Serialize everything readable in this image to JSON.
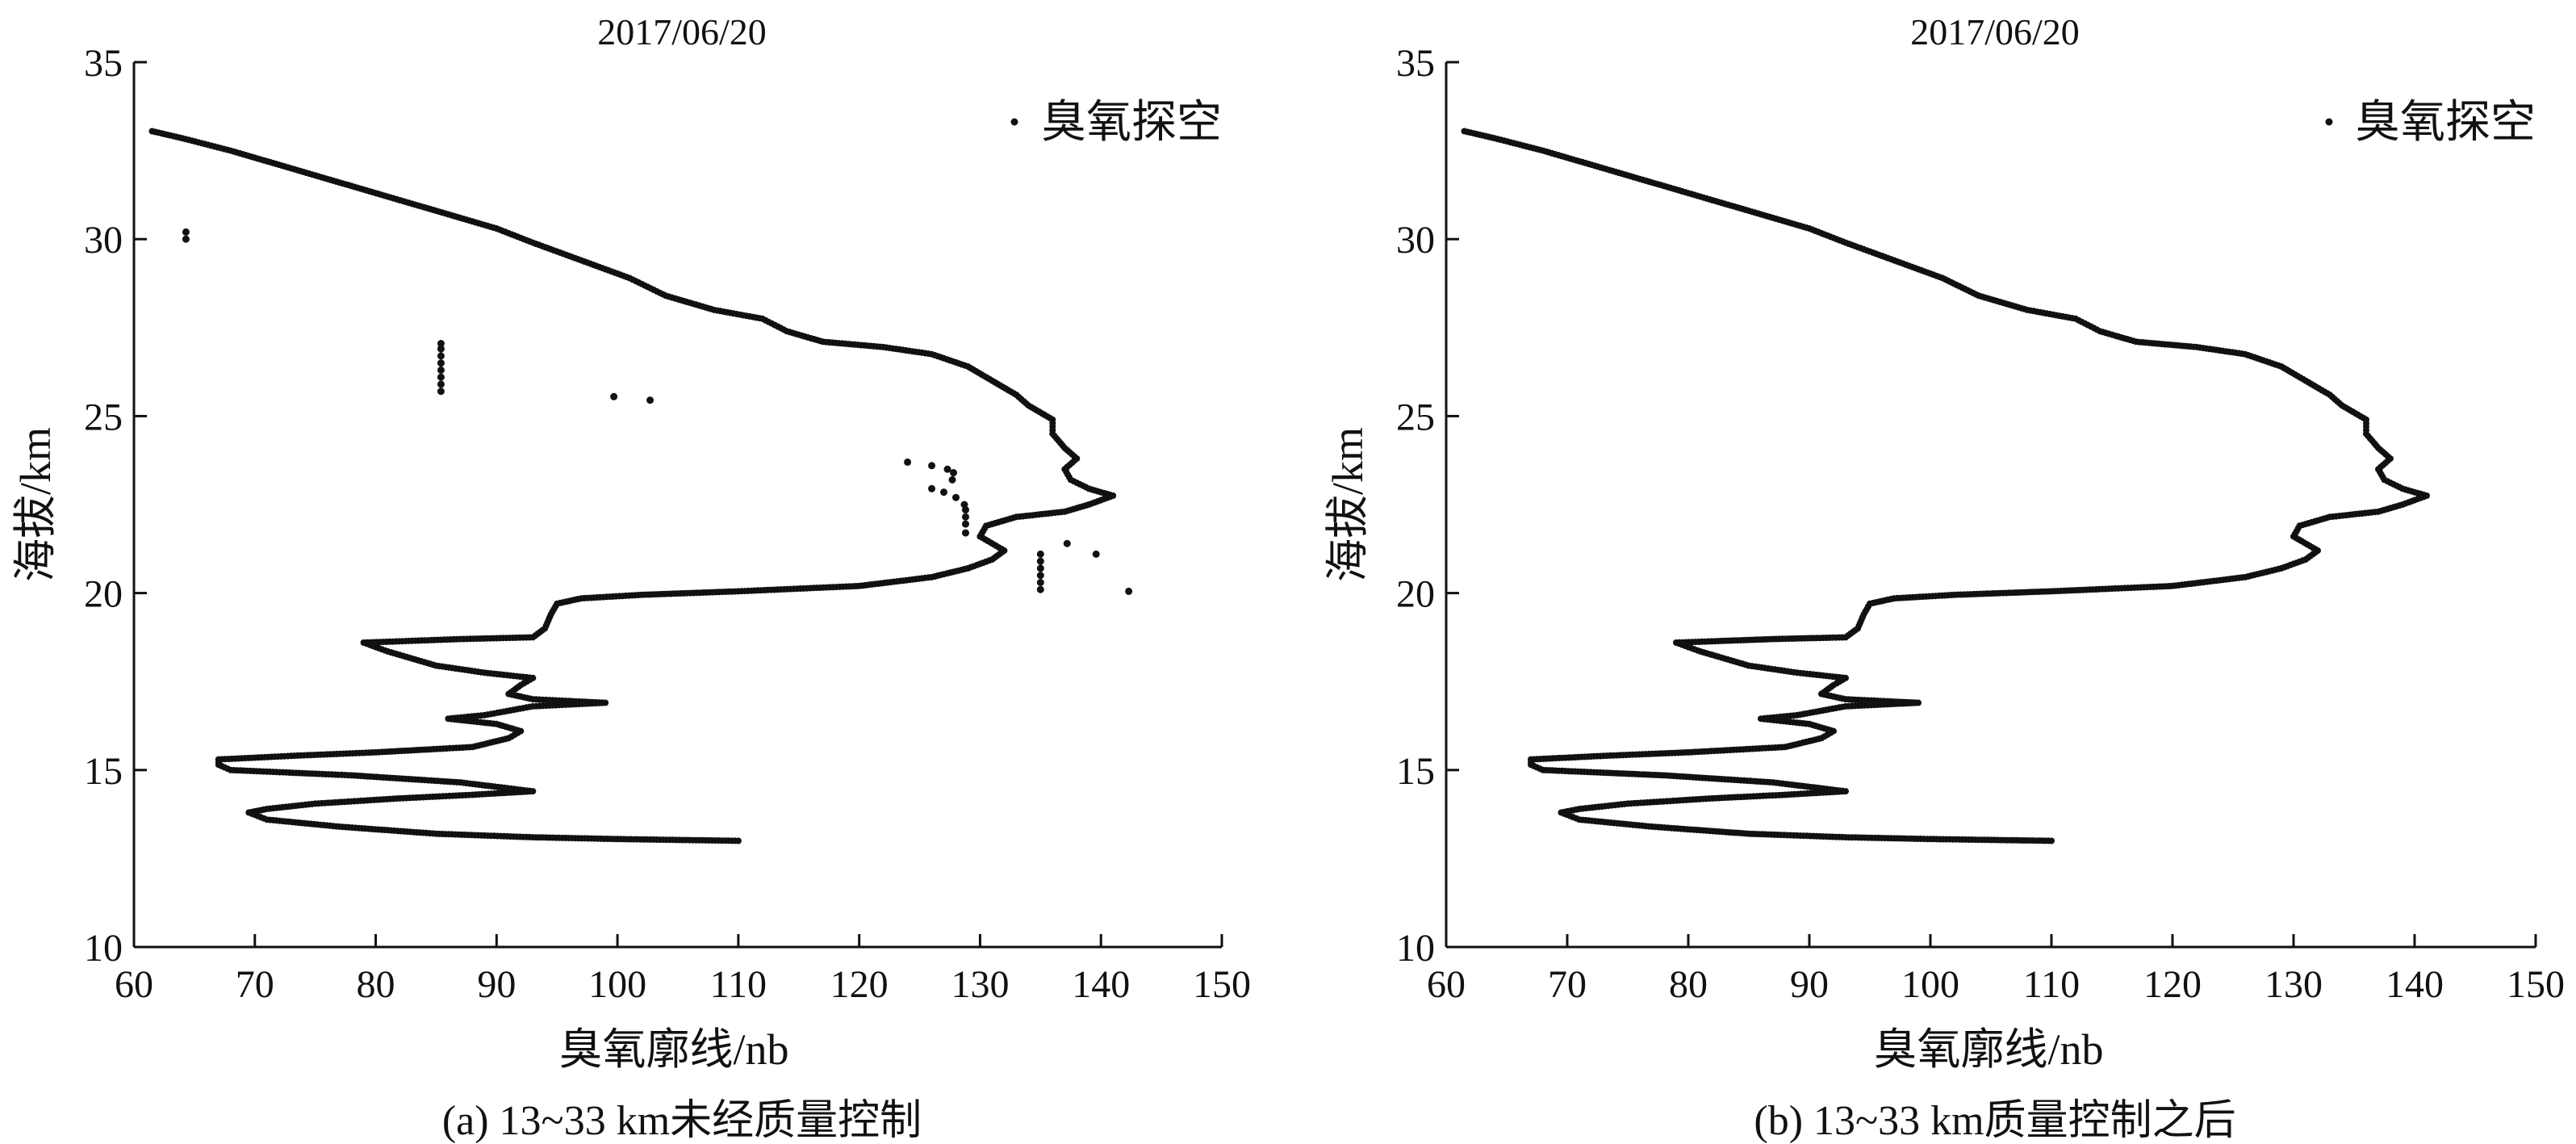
{
  "chart_data": [
    {
      "type": "scatter",
      "title": "2017/06/20",
      "xlabel": "臭氧廓线/nb",
      "ylabel": "海拔/km",
      "caption": "(a) 13~33 km未经质量控制",
      "xlim": [
        60,
        150
      ],
      "ylim": [
        10,
        35
      ],
      "xticks": [
        "60",
        "70",
        "80",
        "90",
        "100",
        "110",
        "120",
        "130",
        "140",
        "150"
      ],
      "yticks": [
        "10",
        "15",
        "20",
        "25",
        "30",
        "35"
      ],
      "legend": {
        "label": "臭氧探空",
        "placement": "top-right"
      },
      "grid": false,
      "series": [
        {
          "name": "臭氧探空",
          "profile": [
            [
              110,
              13.0
            ],
            [
              100,
              13.05
            ],
            [
              93,
              13.1
            ],
            [
              85,
              13.2
            ],
            [
              77,
              13.4
            ],
            [
              71,
              13.6
            ],
            [
              69.5,
              13.8
            ],
            [
              71,
              13.9
            ],
            [
              75,
              14.05
            ],
            [
              82,
              14.2
            ],
            [
              88,
              14.3
            ],
            [
              93,
              14.4
            ],
            [
              87,
              14.65
            ],
            [
              78,
              14.85
            ],
            [
              68,
              15.0
            ],
            [
              67,
              15.15
            ],
            [
              67,
              15.3
            ],
            [
              73,
              15.4
            ],
            [
              80,
              15.5
            ],
            [
              88,
              15.65
            ],
            [
              91,
              15.9
            ],
            [
              92,
              16.1
            ],
            [
              90,
              16.3
            ],
            [
              86,
              16.45
            ],
            [
              89,
              16.55
            ],
            [
              93,
              16.8
            ],
            [
              99,
              16.9
            ],
            [
              93,
              17.0
            ],
            [
              91,
              17.15
            ],
            [
              92,
              17.4
            ],
            [
              93,
              17.6
            ],
            [
              89,
              17.75
            ],
            [
              85,
              17.95
            ],
            [
              83,
              18.15
            ],
            [
              81,
              18.35
            ],
            [
              79,
              18.6
            ],
            [
              87,
              18.7
            ],
            [
              93,
              18.75
            ],
            [
              94,
              19.0
            ],
            [
              94.5,
              19.4
            ],
            [
              95,
              19.7
            ],
            [
              97,
              19.85
            ],
            [
              102,
              19.95
            ],
            [
              110,
              20.05
            ],
            [
              120,
              20.2
            ],
            [
              126,
              20.45
            ],
            [
              129,
              20.7
            ],
            [
              131,
              20.95
            ],
            [
              132,
              21.2
            ],
            [
              130,
              21.6
            ],
            [
              130.5,
              21.9
            ],
            [
              133,
              22.15
            ],
            [
              137,
              22.3
            ],
            [
              139,
              22.5
            ],
            [
              141,
              22.75
            ],
            [
              139,
              22.95
            ],
            [
              137.5,
              23.2
            ],
            [
              137,
              23.5
            ],
            [
              138,
              23.8
            ],
            [
              137,
              24.1
            ],
            [
              136,
              24.5
            ],
            [
              136,
              24.9
            ],
            [
              134,
              25.3
            ],
            [
              133,
              25.6
            ],
            [
              131,
              26.0
            ],
            [
              129,
              26.4
            ],
            [
              126,
              26.75
            ],
            [
              122,
              26.95
            ],
            [
              117,
              27.1
            ],
            [
              114,
              27.4
            ],
            [
              112,
              27.75
            ],
            [
              108,
              28.0
            ],
            [
              104,
              28.4
            ],
            [
              101,
              28.9
            ],
            [
              97,
              29.4
            ],
            [
              93,
              29.9
            ],
            [
              90,
              30.3
            ],
            [
              87,
              30.6
            ],
            [
              84,
              30.9
            ],
            [
              80,
              31.3
            ],
            [
              76,
              31.7
            ],
            [
              72,
              32.1
            ],
            [
              68,
              32.5
            ],
            [
              64,
              32.85
            ],
            [
              61.5,
              33.05
            ]
          ],
          "outliers": [
            [
              64.3,
              30.0
            ],
            [
              64.3,
              30.2
            ],
            [
              85.4,
              25.7
            ],
            [
              85.4,
              25.9
            ],
            [
              85.4,
              26.1
            ],
            [
              85.4,
              26.3
            ],
            [
              85.4,
              26.5
            ],
            [
              85.4,
              26.7
            ],
            [
              85.4,
              26.9
            ],
            [
              85.4,
              27.05
            ],
            [
              99.7,
              25.55
            ],
            [
              102.7,
              25.45
            ],
            [
              124,
              23.7
            ],
            [
              126,
              23.6
            ],
            [
              127.3,
              23.5
            ],
            [
              126,
              22.95
            ],
            [
              127,
              22.85
            ],
            [
              128,
              22.7
            ],
            [
              128.7,
              22.5
            ],
            [
              127.7,
              23.2
            ],
            [
              127.8,
              23.4
            ],
            [
              128.8,
              21.7
            ],
            [
              128.8,
              21.95
            ],
            [
              128.8,
              22.15
            ],
            [
              128.8,
              22.35
            ],
            [
              137.2,
              21.4
            ],
            [
              139.6,
              21.1
            ],
            [
              135,
              20.1
            ],
            [
              135,
              20.3
            ],
            [
              135,
              20.5
            ],
            [
              135,
              20.7
            ],
            [
              135,
              20.9
            ],
            [
              135,
              21.1
            ],
            [
              142.3,
              20.05
            ]
          ]
        }
      ]
    },
    {
      "type": "scatter",
      "title": "2017/06/20",
      "xlabel": "臭氧廓线/nb",
      "ylabel": "海拔/km",
      "caption": "(b) 13~33 km质量控制之后",
      "xlim": [
        60,
        150
      ],
      "ylim": [
        10,
        35
      ],
      "xticks": [
        "60",
        "70",
        "80",
        "90",
        "100",
        "110",
        "120",
        "130",
        "140",
        "150"
      ],
      "yticks": [
        "10",
        "15",
        "20",
        "25",
        "30",
        "35"
      ],
      "legend": {
        "label": "臭氧探空",
        "placement": "top-right"
      },
      "grid": false,
      "series": [
        {
          "name": "臭氧探空",
          "profile": [
            [
              110,
              13.0
            ],
            [
              100,
              13.05
            ],
            [
              93,
              13.1
            ],
            [
              85,
              13.2
            ],
            [
              77,
              13.4
            ],
            [
              71,
              13.6
            ],
            [
              69.5,
              13.8
            ],
            [
              71,
              13.9
            ],
            [
              75,
              14.05
            ],
            [
              82,
              14.2
            ],
            [
              88,
              14.3
            ],
            [
              93,
              14.4
            ],
            [
              87,
              14.65
            ],
            [
              78,
              14.85
            ],
            [
              68,
              15.0
            ],
            [
              67,
              15.15
            ],
            [
              67,
              15.3
            ],
            [
              73,
              15.4
            ],
            [
              80,
              15.5
            ],
            [
              88,
              15.65
            ],
            [
              91,
              15.9
            ],
            [
              92,
              16.1
            ],
            [
              90,
              16.3
            ],
            [
              86,
              16.45
            ],
            [
              89,
              16.55
            ],
            [
              93,
              16.8
            ],
            [
              99,
              16.9
            ],
            [
              93,
              17.0
            ],
            [
              91,
              17.15
            ],
            [
              92,
              17.4
            ],
            [
              93,
              17.6
            ],
            [
              89,
              17.75
            ],
            [
              85,
              17.95
            ],
            [
              83,
              18.15
            ],
            [
              81,
              18.35
            ],
            [
              79,
              18.6
            ],
            [
              87,
              18.7
            ],
            [
              93,
              18.75
            ],
            [
              94,
              19.0
            ],
            [
              94.5,
              19.4
            ],
            [
              95,
              19.7
            ],
            [
              97,
              19.85
            ],
            [
              102,
              19.95
            ],
            [
              110,
              20.05
            ],
            [
              120,
              20.2
            ],
            [
              126,
              20.45
            ],
            [
              129,
              20.7
            ],
            [
              131,
              20.95
            ],
            [
              132,
              21.2
            ],
            [
              130,
              21.6
            ],
            [
              130.5,
              21.9
            ],
            [
              133,
              22.15
            ],
            [
              137,
              22.3
            ],
            [
              139,
              22.5
            ],
            [
              141,
              22.75
            ],
            [
              139,
              22.95
            ],
            [
              137.5,
              23.2
            ],
            [
              137,
              23.5
            ],
            [
              138,
              23.8
            ],
            [
              137,
              24.1
            ],
            [
              136,
              24.5
            ],
            [
              136,
              24.9
            ],
            [
              134,
              25.3
            ],
            [
              133,
              25.6
            ],
            [
              131,
              26.0
            ],
            [
              129,
              26.4
            ],
            [
              126,
              26.75
            ],
            [
              122,
              26.95
            ],
            [
              117,
              27.1
            ],
            [
              114,
              27.4
            ],
            [
              112,
              27.75
            ],
            [
              108,
              28.0
            ],
            [
              104,
              28.4
            ],
            [
              101,
              28.9
            ],
            [
              97,
              29.4
            ],
            [
              93,
              29.9
            ],
            [
              90,
              30.3
            ],
            [
              87,
              30.6
            ],
            [
              84,
              30.9
            ],
            [
              80,
              31.3
            ],
            [
              76,
              31.7
            ],
            [
              72,
              32.1
            ],
            [
              68,
              32.5
            ],
            [
              64,
              32.85
            ],
            [
              61.5,
              33.05
            ]
          ],
          "outliers": []
        }
      ]
    }
  ]
}
